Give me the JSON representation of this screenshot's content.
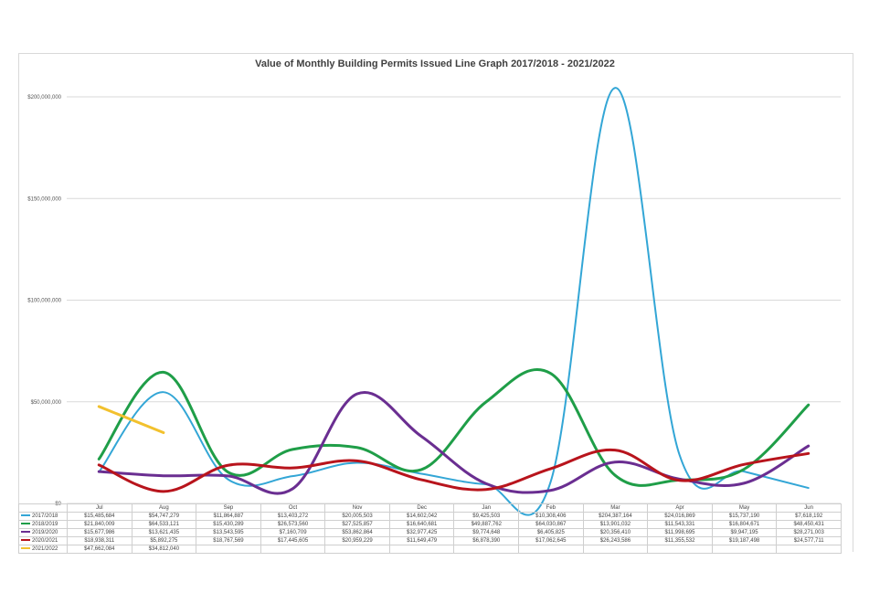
{
  "chart_data": {
    "type": "line",
    "title": "Value of Monthly Building Permits Issued Line Graph 2017/2018 - 2021/2022",
    "categories": [
      "Jul",
      "Aug",
      "Sep",
      "Oct",
      "Nov",
      "Dec",
      "Jan",
      "Feb",
      "Mar",
      "Apr",
      "May",
      "Jun"
    ],
    "ylim": [
      0,
      200000000
    ],
    "yticks": [
      {
        "value": 0,
        "label": "$0"
      },
      {
        "value": 50000000,
        "label": "$50,000,000"
      },
      {
        "value": 100000000,
        "label": "$100,000,000"
      },
      {
        "value": 150000000,
        "label": "$150,000,000"
      },
      {
        "value": 200000000,
        "label": "$200,000,000"
      }
    ],
    "grid": true,
    "series": [
      {
        "name": "2017/2018",
        "color": "#33a6d6",
        "values": [
          15485684,
          54747279,
          11864887,
          13403272,
          20005503,
          14602042,
          9425503,
          10308406,
          204387164,
          24016869,
          15737190,
          7618192
        ],
        "labels": [
          "$15,485,684",
          "$54,747,279",
          "$11,864,887",
          "$13,403,272",
          "$20,005,503",
          "$14,602,042",
          "$9,425,503",
          "$10,308,406",
          "$204,387,164",
          "$24,016,869",
          "$15,737,190",
          "$7,618,192"
        ]
      },
      {
        "name": "2018/2019",
        "color": "#1f9e48",
        "values": [
          21840009,
          64533121,
          15430289,
          26573560,
          27525857,
          16640681,
          49887762,
          64030867,
          13901032,
          11543331,
          16804671,
          48450431
        ],
        "labels": [
          "$21,840,009",
          "$64,533,121",
          "$15,430,289",
          "$26,573,560",
          "$27,525,857",
          "$16,640,681",
          "$49,887,762",
          "$64,030,867",
          "$13,901,032",
          "$11,543,331",
          "$16,804,671",
          "$48,450,431"
        ]
      },
      {
        "name": "2019/2020",
        "color": "#6a2e91",
        "values": [
          15677986,
          13621435,
          13543595,
          7160709,
          53862864,
          32977425,
          9774648,
          6405825,
          20356410,
          11998695,
          9947195,
          28271003
        ],
        "labels": [
          "$15,677,986",
          "$13,621,435",
          "$13,543,595",
          "$7,160,709",
          "$53,862,864",
          "$32,977,425",
          "$9,774,648",
          "$6,405,825",
          "$20,356,410",
          "$11,998,695",
          "$9,947,195",
          "$28,271,003"
        ]
      },
      {
        "name": "2020/2021",
        "color": "#b8141c",
        "values": [
          18938311,
          5892275,
          18767569,
          17445605,
          20959229,
          11649479,
          6878390,
          17062645,
          26243586,
          11355532,
          19187498,
          24577711
        ],
        "labels": [
          "$18,938,311",
          "$5,892,275",
          "$18,767,569",
          "$17,445,605",
          "$20,959,229",
          "$11,649,479",
          "$6,878,390",
          "$17,062,645",
          "$26,243,586",
          "$11,355,532",
          "$19,187,498",
          "$24,577,711"
        ]
      },
      {
        "name": "2021/2022",
        "color": "#f2c12e",
        "values": [
          47662084,
          34812040,
          null,
          null,
          null,
          null,
          null,
          null,
          null,
          null,
          null,
          null
        ],
        "labels": [
          "$47,662,084",
          "$34,812,040",
          "",
          "",
          "",
          "",
          "",
          "",
          "",
          "",
          "",
          ""
        ]
      }
    ]
  }
}
